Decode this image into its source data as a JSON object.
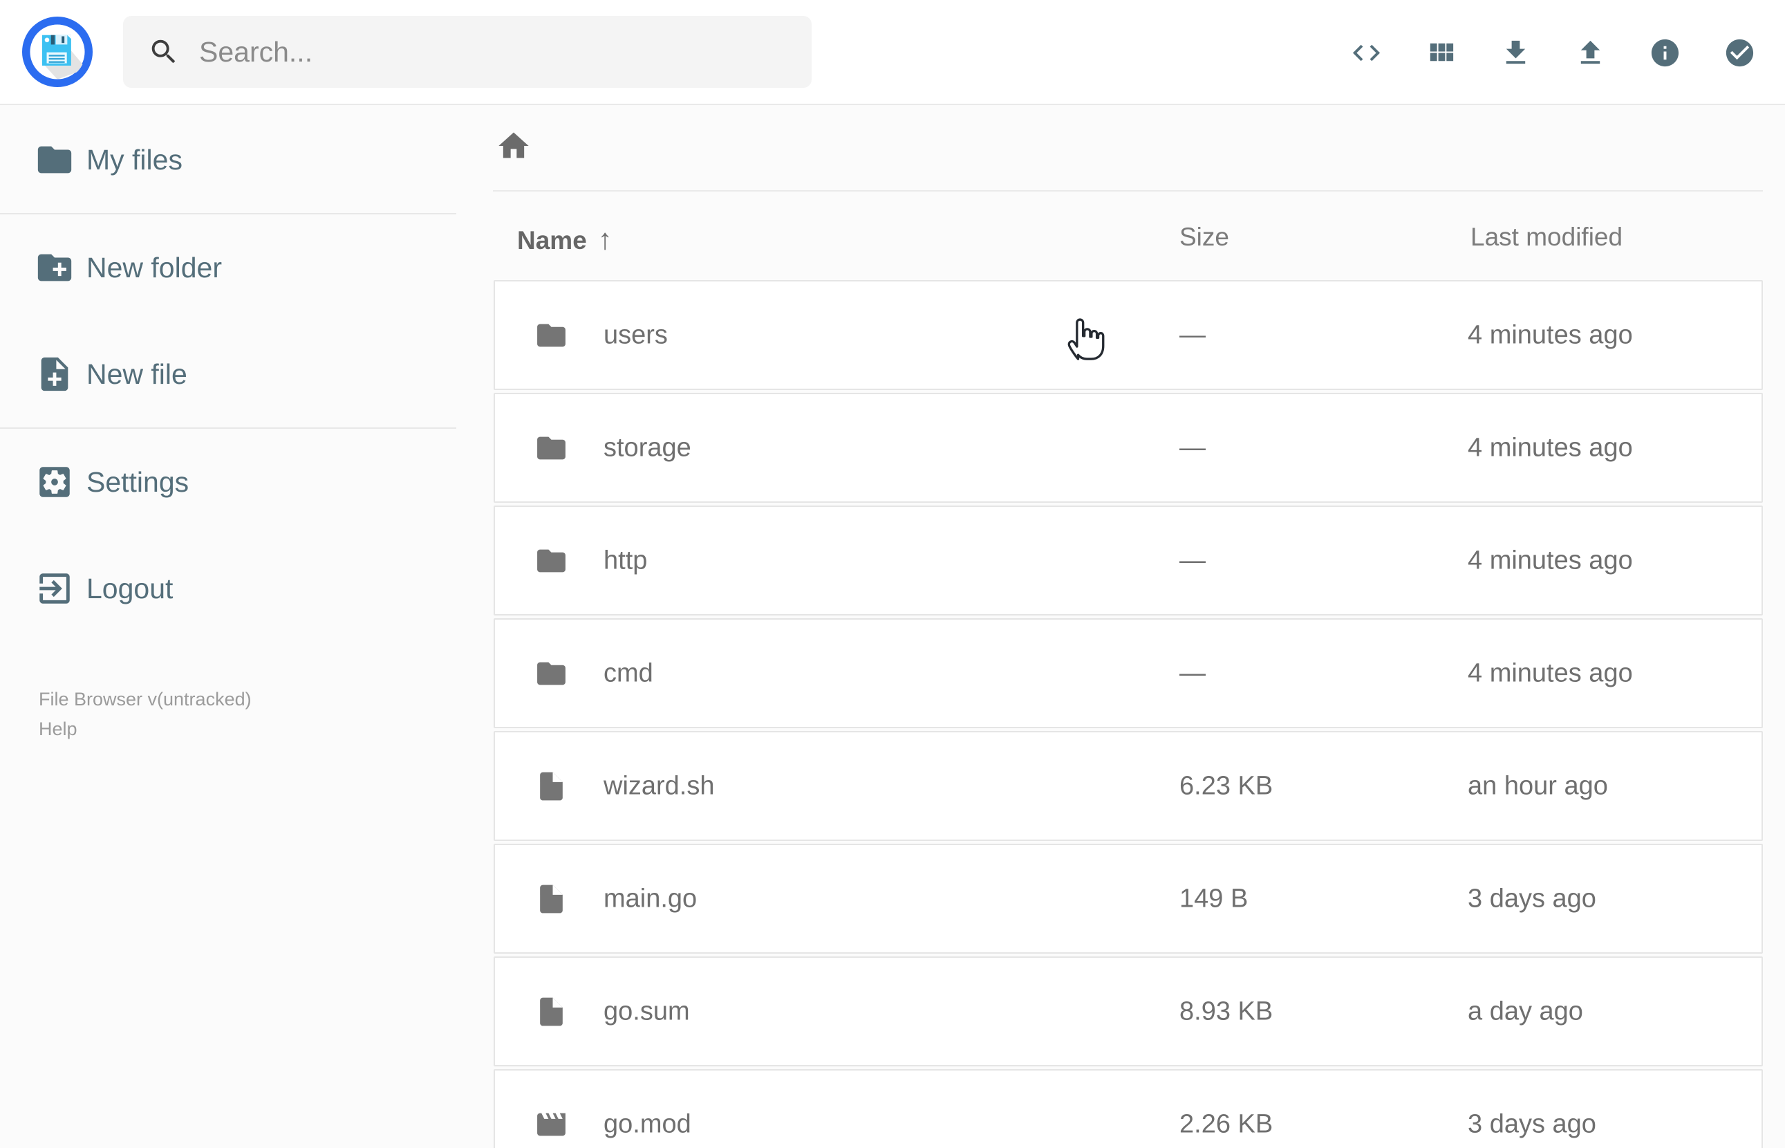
{
  "app": {
    "name": "File Browser"
  },
  "header": {
    "logo_icon": "filebrowser-floppy",
    "search": {
      "placeholder": "Search...",
      "icon": "search-icon",
      "value": ""
    },
    "actions": [
      {
        "name": "shell-button",
        "icon": "code"
      },
      {
        "name": "switch-view-button",
        "icon": "grid"
      },
      {
        "name": "download-button",
        "icon": "download"
      },
      {
        "name": "upload-button",
        "icon": "upload"
      },
      {
        "name": "info-button",
        "icon": "info"
      },
      {
        "name": "select-multiple-button",
        "icon": "check-circle"
      }
    ]
  },
  "sidebar": {
    "items": [
      {
        "name": "sidebar-item-my-files",
        "label": "My files",
        "icon": "folder"
      },
      {
        "name": "sidebar-item-new-folder",
        "label": "New folder",
        "icon": "folder-plus"
      },
      {
        "name": "sidebar-item-new-file",
        "label": "New file",
        "icon": "file-plus"
      },
      {
        "name": "sidebar-item-settings",
        "label": "Settings",
        "icon": "settings"
      },
      {
        "name": "sidebar-item-logout",
        "label": "Logout",
        "icon": "logout"
      }
    ],
    "dividers_after": [
      0,
      2
    ],
    "footer": {
      "version": "File Browser v(untracked)",
      "help": "Help"
    }
  },
  "main": {
    "breadcrumb": {
      "home_icon": "home"
    },
    "columns": {
      "name": "Name",
      "size": "Size",
      "modified": "Last modified",
      "sort_ascending_glyph": "↑"
    },
    "rows": [
      {
        "name": "users",
        "icon": "folder",
        "size": "—",
        "modified": "4 minutes ago"
      },
      {
        "name": "storage",
        "icon": "folder",
        "size": "—",
        "modified": "4 minutes ago"
      },
      {
        "name": "http",
        "icon": "folder",
        "size": "—",
        "modified": "4 minutes ago"
      },
      {
        "name": "cmd",
        "icon": "folder",
        "size": "—",
        "modified": "4 minutes ago"
      },
      {
        "name": "wizard.sh",
        "icon": "file",
        "size": "6.23 KB",
        "modified": "an hour ago"
      },
      {
        "name": "main.go",
        "icon": "file",
        "size": "149 B",
        "modified": "3 days ago"
      },
      {
        "name": "go.sum",
        "icon": "file",
        "size": "8.93 KB",
        "modified": "a day ago"
      },
      {
        "name": "go.mod",
        "icon": "movie",
        "size": "2.26 KB",
        "modified": "3 days ago"
      }
    ]
  },
  "colors": {
    "accent_blue": "#2b6cf0",
    "slate_icons": "#546e7a",
    "listing_text": "#6f6f6f",
    "background": "#fbfbfb"
  }
}
